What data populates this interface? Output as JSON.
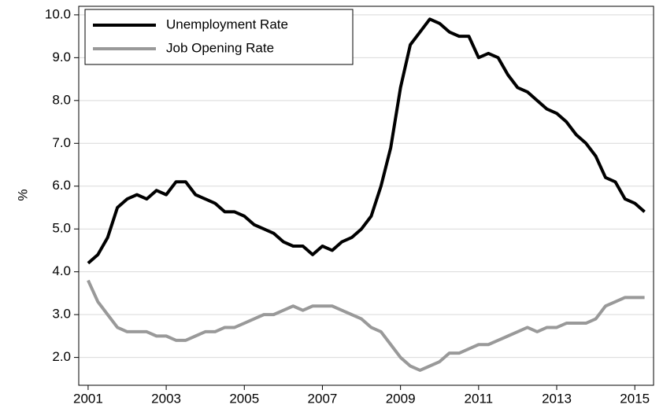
{
  "chart_data": {
    "type": "line",
    "y_label": "%",
    "x": [
      2001,
      2001.25,
      2001.5,
      2001.75,
      2002,
      2002.25,
      2002.5,
      2002.75,
      2003,
      2003.25,
      2003.5,
      2003.75,
      2004,
      2004.25,
      2004.5,
      2004.75,
      2005,
      2005.25,
      2005.5,
      2005.75,
      2006,
      2006.25,
      2006.5,
      2006.75,
      2007,
      2007.25,
      2007.5,
      2007.75,
      2008,
      2008.25,
      2008.5,
      2008.75,
      2009,
      2009.25,
      2009.5,
      2009.75,
      2010,
      2010.25,
      2010.5,
      2010.75,
      2011,
      2011.25,
      2011.5,
      2011.75,
      2012,
      2012.25,
      2012.5,
      2012.75,
      2013,
      2013.25,
      2013.5,
      2013.75,
      2014,
      2014.25,
      2014.5,
      2014.75,
      2015,
      2015.25
    ],
    "series": [
      {
        "name": "Unemployment Rate",
        "color": "#000000",
        "values": [
          4.2,
          4.4,
          4.8,
          5.5,
          5.7,
          5.8,
          5.7,
          5.9,
          5.8,
          6.1,
          6.1,
          5.8,
          5.7,
          5.6,
          5.4,
          5.4,
          5.3,
          5.1,
          5.0,
          4.9,
          4.7,
          4.6,
          4.6,
          4.4,
          4.6,
          4.5,
          4.7,
          4.8,
          5.0,
          5.3,
          6.0,
          6.9,
          8.3,
          9.3,
          9.6,
          9.9,
          9.8,
          9.6,
          9.5,
          9.5,
          9.0,
          9.1,
          9.0,
          8.6,
          8.3,
          8.2,
          8.0,
          7.8,
          7.7,
          7.5,
          7.2,
          7.0,
          6.7,
          6.2,
          6.1,
          5.7,
          5.6,
          5.4
        ]
      },
      {
        "name": "Job Opening Rate",
        "color": "#999999",
        "values": [
          3.8,
          3.3,
          3.0,
          2.7,
          2.6,
          2.6,
          2.6,
          2.5,
          2.5,
          2.4,
          2.4,
          2.5,
          2.6,
          2.6,
          2.7,
          2.7,
          2.8,
          2.9,
          3.0,
          3.0,
          3.1,
          3.2,
          3.1,
          3.2,
          3.2,
          3.2,
          3.1,
          3.0,
          2.9,
          2.7,
          2.6,
          2.3,
          2.0,
          1.8,
          1.7,
          1.8,
          1.9,
          2.1,
          2.1,
          2.2,
          2.3,
          2.3,
          2.4,
          2.5,
          2.6,
          2.7,
          2.6,
          2.7,
          2.7,
          2.8,
          2.8,
          2.8,
          2.9,
          3.2,
          3.3,
          3.4,
          3.4,
          3.4
        ]
      }
    ],
    "xlim": [
      2000.76,
      2015.48
    ],
    "xticks": [
      2001,
      2003,
      2005,
      2007,
      2009,
      2011,
      2013,
      2015
    ],
    "ylim": [
      1.35,
      10.2
    ],
    "yticks": [
      {
        "value": 2,
        "label": "2.0"
      },
      {
        "value": 3,
        "label": "3.0"
      },
      {
        "value": 4,
        "label": "4.0"
      },
      {
        "value": 5,
        "label": "5.0"
      },
      {
        "value": 6,
        "label": "6.0"
      },
      {
        "value": 7,
        "label": "7.0"
      },
      {
        "value": 8,
        "label": "8.0"
      },
      {
        "value": 9,
        "label": "9.0"
      },
      {
        "value": 10,
        "label": "10.0"
      }
    ],
    "grid": true,
    "legend": "upper-left"
  }
}
